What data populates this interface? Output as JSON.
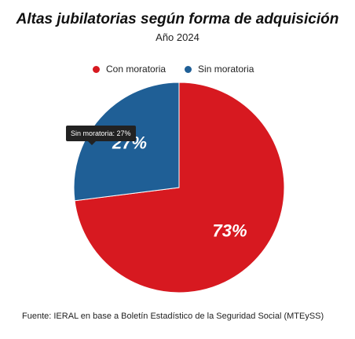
{
  "header": {
    "title": "Altas jubilatorias según forma de adquisición",
    "subtitle": "Año 2024"
  },
  "tooltip": {
    "text": "Sin moratoria: 27%"
  },
  "footer": {
    "source": "Fuente: IERAL en base a Boletín Estadístico de la Seguridad Social (MTEySS)"
  },
  "chart_data": {
    "type": "pie",
    "title": "Altas jubilatorias según forma de adquisición",
    "subtitle": "Año 2024",
    "legend_position": "top",
    "unit": "%",
    "series": [
      {
        "name": "Con moratoria",
        "value": 73,
        "label": "73%",
        "color": "#d71920"
      },
      {
        "name": "Sin moratoria",
        "value": 27,
        "label": "27%",
        "color": "#1f5f96"
      }
    ],
    "source": "Fuente: IERAL en base a Boletín Estadístico de la Seguridad Social (MTEySS)"
  }
}
